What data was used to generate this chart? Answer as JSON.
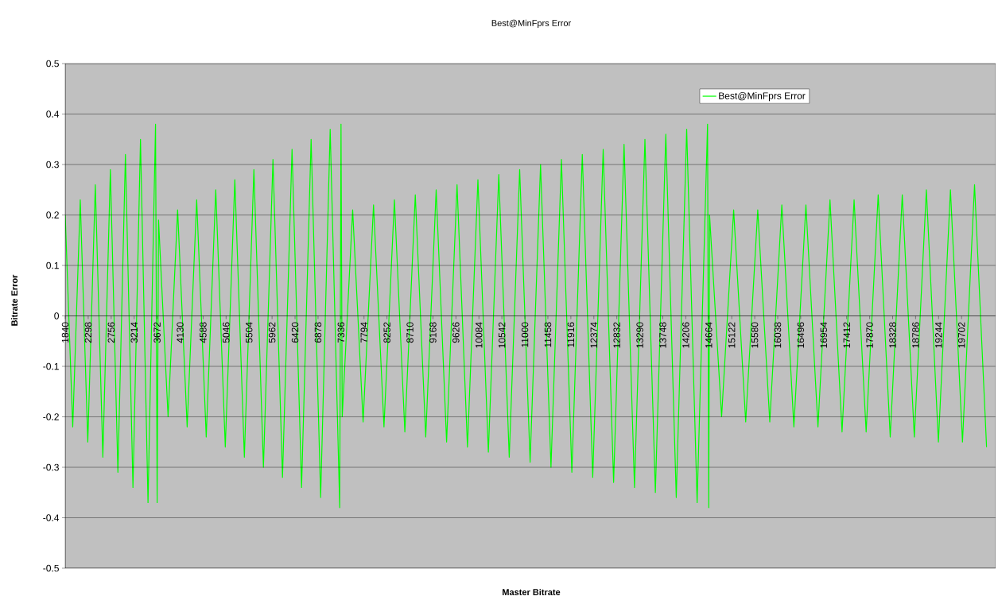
{
  "chart_data": {
    "type": "line",
    "title": "Best@MinFprs Error",
    "xlabel": "Master Bitrate",
    "ylabel": "Bitrate Error",
    "xlim": [
      1840,
      20380
    ],
    "xticks": [
      {
        "value": 1840,
        "label": "1840"
      },
      {
        "value": 2298,
        "label": "2298"
      },
      {
        "value": 2756,
        "label": "2756"
      },
      {
        "value": 3214,
        "label": "3214"
      },
      {
        "value": 3672,
        "label": "3672"
      },
      {
        "value": 4130,
        "label": "4130"
      },
      {
        "value": 4588,
        "label": "4588"
      },
      {
        "value": 5046,
        "label": "5046"
      },
      {
        "value": 5504,
        "label": "5504"
      },
      {
        "value": 5962,
        "label": "5962"
      },
      {
        "value": 6420,
        "label": "6420"
      },
      {
        "value": 6878,
        "label": "6878"
      },
      {
        "value": 7336,
        "label": "7336"
      },
      {
        "value": 7794,
        "label": "7794"
      },
      {
        "value": 8252,
        "label": "8252"
      },
      {
        "value": 8710,
        "label": "8710"
      },
      {
        "value": 9168,
        "label": "9168"
      },
      {
        "value": 9626,
        "label": "9626"
      },
      {
        "value": 10084,
        "label": "10084"
      },
      {
        "value": 10542,
        "label": "10542"
      },
      {
        "value": 11000,
        "label": "11000"
      },
      {
        "value": 11458,
        "label": "11458"
      },
      {
        "value": 11916,
        "label": "11916"
      },
      {
        "value": 12374,
        "label": "12374"
      },
      {
        "value": 12832,
        "label": "12832"
      },
      {
        "value": 13290,
        "label": "13290"
      },
      {
        "value": 13748,
        "label": "13748"
      },
      {
        "value": 14206,
        "label": "14206"
      },
      {
        "value": 14664,
        "label": "14664"
      },
      {
        "value": 15122,
        "label": "15122"
      },
      {
        "value": 15580,
        "label": "15580"
      },
      {
        "value": 16038,
        "label": "16038"
      },
      {
        "value": 16496,
        "label": "16496"
      },
      {
        "value": 16954,
        "label": "16954"
      },
      {
        "value": 17412,
        "label": "17412"
      },
      {
        "value": 17870,
        "label": "17870"
      },
      {
        "value": 18328,
        "label": "18328"
      },
      {
        "value": 18786,
        "label": "18786"
      },
      {
        "value": 19244,
        "label": "19244"
      },
      {
        "value": 19702,
        "label": "19702"
      }
    ],
    "ylim": [
      -0.5,
      0.5
    ],
    "yticks": [
      {
        "value": -0.5,
        "label": "-0.5"
      },
      {
        "value": -0.4,
        "label": "-0.4"
      },
      {
        "value": -0.3,
        "label": "-0.3"
      },
      {
        "value": -0.2,
        "label": "-0.2"
      },
      {
        "value": -0.1,
        "label": "-0.1"
      },
      {
        "value": 0,
        "label": "0"
      },
      {
        "value": 0.1,
        "label": "0.1"
      },
      {
        "value": 0.2,
        "label": "0.2"
      },
      {
        "value": 0.3,
        "label": "0.3"
      },
      {
        "value": 0.4,
        "label": "0.4"
      },
      {
        "value": 0.5,
        "label": "0.5"
      }
    ],
    "grid": "y",
    "legend": "top right",
    "series": [
      {
        "name": "Best@MinFprs Error",
        "color": "#00ff00",
        "x": [
          1840,
          1990,
          2140,
          2290,
          2440,
          2590,
          2740,
          2890,
          3040,
          3190,
          3340,
          3490,
          3640,
          3672,
          3700,
          3890,
          4080,
          4270,
          4460,
          4650,
          4840,
          5030,
          5220,
          5410,
          5600,
          5790,
          5980,
          6170,
          6360,
          6550,
          6740,
          6930,
          7120,
          7310,
          7336,
          7360,
          7568,
          7776,
          7984,
          8192,
          8400,
          8608,
          8816,
          9024,
          9232,
          9440,
          9648,
          9856,
          10064,
          10272,
          10480,
          10688,
          10896,
          11104,
          11312,
          11520,
          11728,
          11936,
          12144,
          12352,
          12560,
          12768,
          12976,
          13184,
          13392,
          13600,
          13808,
          14016,
          14224,
          14432,
          14640,
          14664,
          14680,
          14920,
          15160,
          15400,
          15640,
          15880,
          16120,
          16360,
          16600,
          16840,
          17080,
          17320,
          17560,
          17800,
          18040,
          18280,
          18520,
          18760,
          19000,
          19240,
          19480,
          19720,
          19960,
          20200
        ],
        "values": [
          0.2,
          -0.22,
          0.23,
          -0.25,
          0.26,
          -0.28,
          0.29,
          -0.31,
          0.32,
          -0.34,
          0.35,
          -0.37,
          0.38,
          -0.37,
          0.19,
          -0.2,
          0.21,
          -0.22,
          0.23,
          -0.24,
          0.25,
          -0.26,
          0.27,
          -0.28,
          0.29,
          -0.3,
          0.31,
          -0.32,
          0.33,
          -0.34,
          0.35,
          -0.36,
          0.37,
          -0.38,
          0.38,
          -0.2,
          0.21,
          -0.21,
          0.22,
          -0.22,
          0.23,
          -0.23,
          0.24,
          -0.24,
          0.25,
          -0.25,
          0.26,
          -0.26,
          0.27,
          -0.27,
          0.28,
          -0.28,
          0.29,
          -0.29,
          0.3,
          -0.3,
          0.31,
          -0.31,
          0.32,
          -0.32,
          0.33,
          -0.33,
          0.34,
          -0.34,
          0.35,
          -0.35,
          0.36,
          -0.36,
          0.37,
          -0.37,
          0.38,
          -0.38,
          0.2,
          -0.2,
          0.21,
          -0.21,
          0.21,
          -0.21,
          0.22,
          -0.22,
          0.22,
          -0.22,
          0.23,
          -0.23,
          0.23,
          -0.23,
          0.24,
          -0.24,
          0.24,
          -0.24,
          0.25,
          -0.25,
          0.25,
          -0.25,
          0.26,
          -0.26
        ]
      }
    ]
  }
}
